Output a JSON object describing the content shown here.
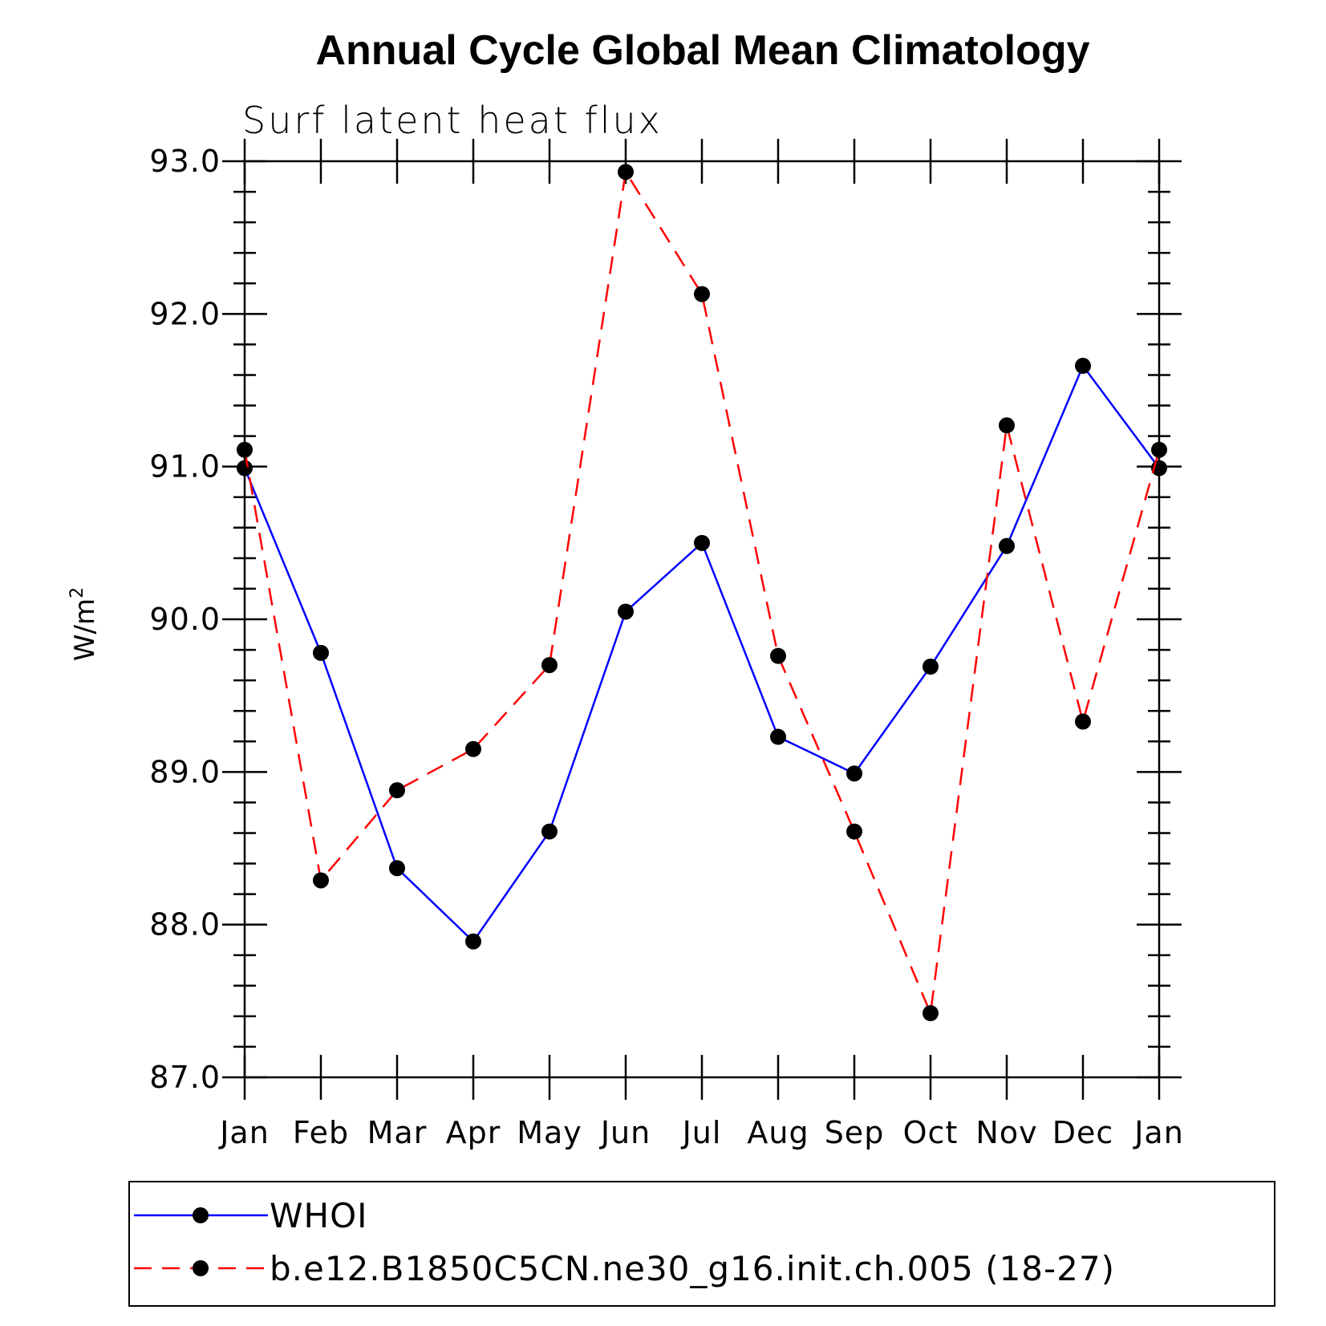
{
  "chart_data": {
    "type": "line",
    "title": "Annual Cycle Global Mean Climatology",
    "subtitle": "Surf latent heat flux",
    "xlabel": "",
    "ylabel": "W/m",
    "ylabel_superscript": "2",
    "categories": [
      "Jan",
      "Feb",
      "Mar",
      "Apr",
      "May",
      "Jun",
      "Jul",
      "Aug",
      "Sep",
      "Oct",
      "Nov",
      "Dec",
      "Jan"
    ],
    "ylim": [
      87.0,
      93.0
    ],
    "yticks": [
      "87.0",
      "88.0",
      "89.0",
      "90.0",
      "91.0",
      "92.0",
      "93.0"
    ],
    "y_minor_step": 0.2,
    "grid": false,
    "legend_position": "bottom",
    "series": [
      {
        "name": "WHOI",
        "color": "#0000ff",
        "dash": "solid",
        "marker": "filled-circle",
        "values": [
          90.99,
          89.78,
          88.37,
          87.89,
          88.61,
          90.05,
          90.5,
          89.23,
          88.99,
          89.69,
          90.48,
          91.66,
          90.99
        ]
      },
      {
        "name": "b.e12.B1850C5CN.ne30_g16.init.ch.005 (18-27)",
        "color": "#ff0000",
        "dash": "dashed",
        "marker": "filled-circle",
        "values": [
          91.11,
          88.29,
          88.88,
          89.15,
          89.7,
          92.93,
          92.13,
          89.76,
          88.61,
          87.42,
          91.27,
          89.33,
          91.11
        ]
      }
    ]
  }
}
